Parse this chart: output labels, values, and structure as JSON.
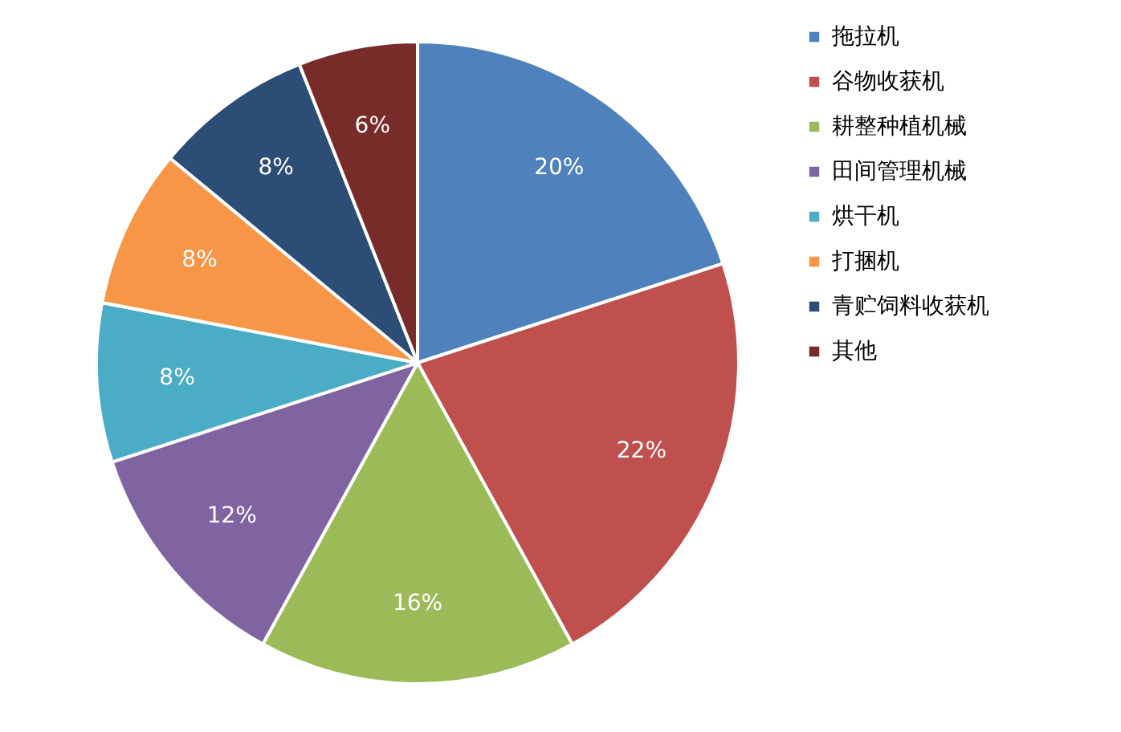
{
  "chart_data": {
    "type": "pie",
    "categories": [
      "拖拉机",
      "谷物收获机",
      "耕整种植机械",
      "田间管理机械",
      "烘干机",
      "打捆机",
      "青贮饲料收获机",
      "其他"
    ],
    "values": [
      20,
      22,
      16,
      12,
      8,
      8,
      8,
      6
    ],
    "value_labels": [
      "20%",
      "22%",
      "16%",
      "12%",
      "8%",
      "8%",
      "8%",
      "6%"
    ],
    "colors": [
      "#4f81bd",
      "#c0504d",
      "#9bbb59",
      "#8064a2",
      "#4bacc6",
      "#f79646",
      "#2c4d75",
      "#772c2a"
    ],
    "legend": "right"
  }
}
